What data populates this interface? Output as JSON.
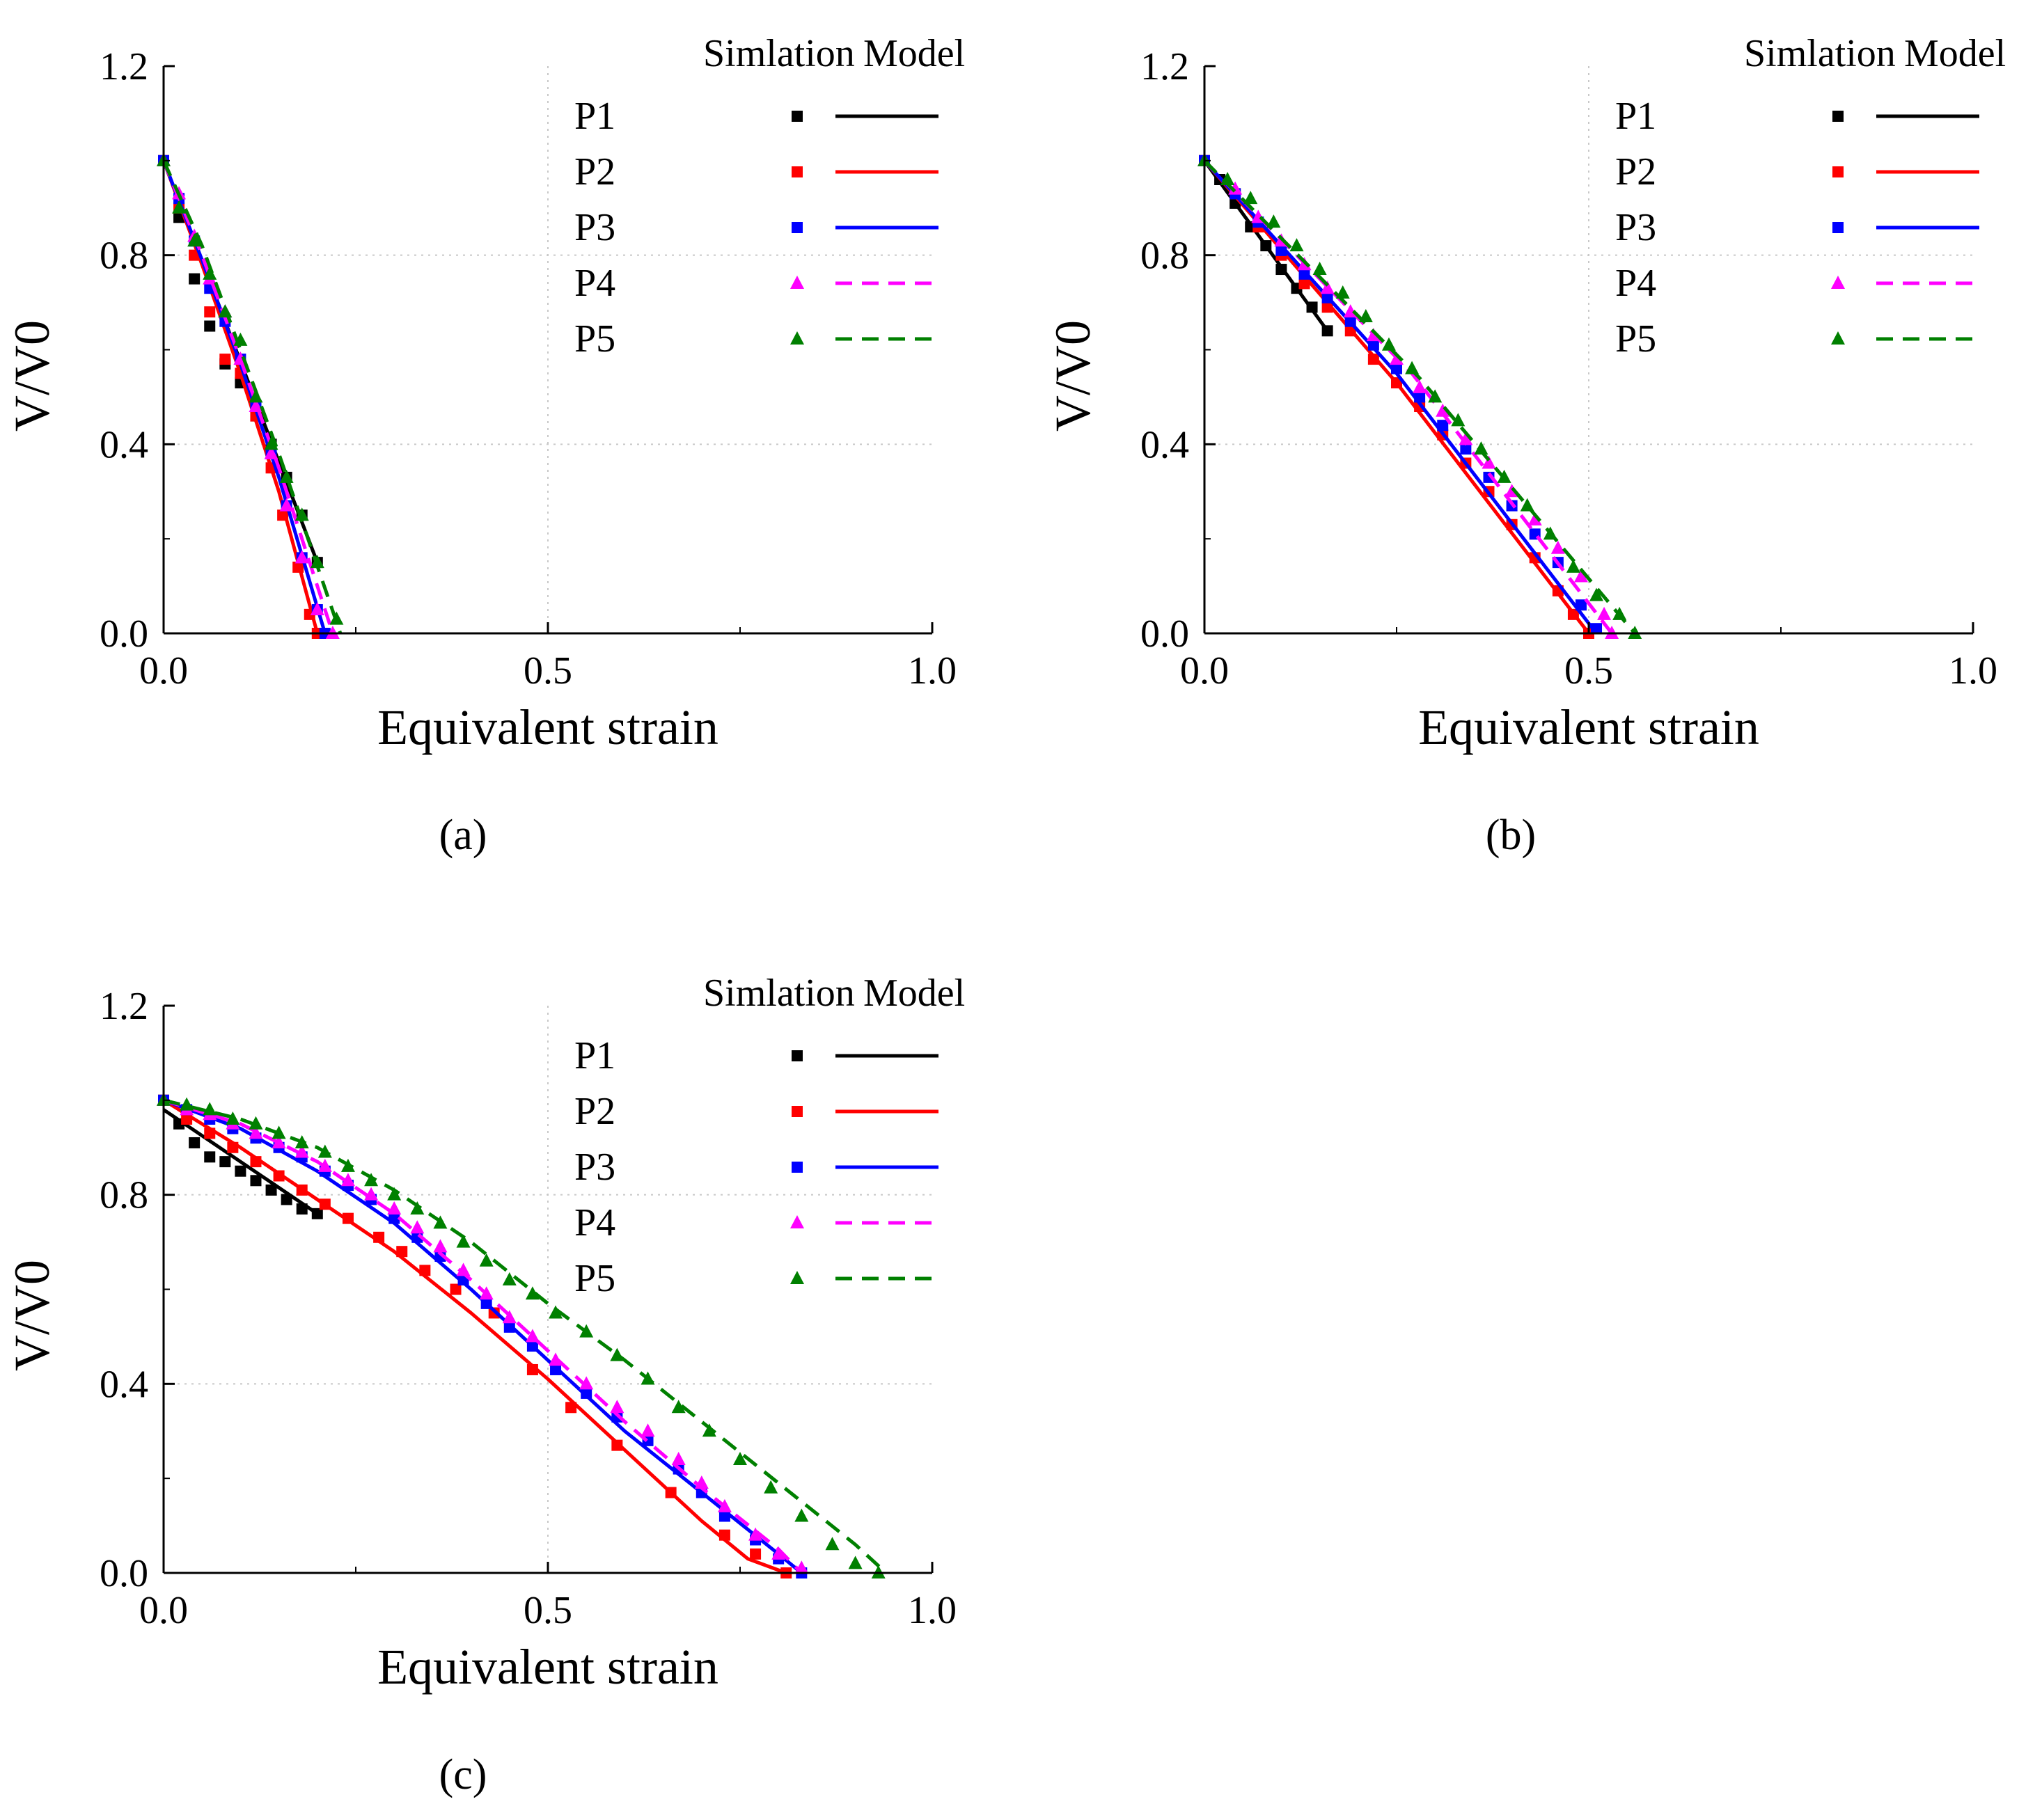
{
  "colors": {
    "P1": "#000000",
    "P2": "#ff0000",
    "P3": "#0000ff",
    "P4": "#ff00ff",
    "P5": "#008000"
  },
  "chart_data": [
    {
      "type": "line",
      "panel_label": "(a)",
      "xlabel": "Equivalent strain",
      "ylabel": "V/V0",
      "xlim": [
        0.0,
        1.0
      ],
      "ylim": [
        0.0,
        1.2
      ],
      "xticks": [
        "0.0",
        "0.5",
        "1.0"
      ],
      "yticks": [
        "0.0",
        "0.4",
        "0.8",
        "1.2"
      ],
      "grid": "dotted",
      "legend": {
        "placement": "top-right",
        "sim_header": "Simlation",
        "model_header": "Model",
        "entries": [
          "P1",
          "P2",
          "P3",
          "P4",
          "P5"
        ]
      },
      "series": [
        {
          "name": "P1",
          "marker": "square",
          "line": "solid",
          "sim_x": [
            0.0,
            0.02,
            0.04,
            0.06,
            0.08,
            0.1,
            0.12,
            0.14,
            0.16,
            0.18,
            0.2
          ],
          "sim_y": [
            1.0,
            0.88,
            0.75,
            0.65,
            0.57,
            0.53,
            0.46,
            0.4,
            0.33,
            0.25,
            0.15
          ],
          "model_x": [
            0.0,
            0.2
          ],
          "model_y": [
            1.0,
            0.15
          ]
        },
        {
          "name": "P2",
          "marker": "square",
          "line": "solid",
          "sim_x": [
            0.0,
            0.02,
            0.04,
            0.06,
            0.08,
            0.1,
            0.12,
            0.14,
            0.155,
            0.175,
            0.19,
            0.2
          ],
          "sim_y": [
            1.0,
            0.9,
            0.8,
            0.68,
            0.58,
            0.55,
            0.46,
            0.35,
            0.25,
            0.14,
            0.04,
            0.0
          ],
          "model_x": [
            0.0,
            0.05,
            0.1,
            0.15,
            0.2
          ],
          "model_y": [
            1.0,
            0.78,
            0.55,
            0.3,
            0.0
          ]
        },
        {
          "name": "P3",
          "marker": "square",
          "line": "solid",
          "sim_x": [
            0.0,
            0.02,
            0.04,
            0.06,
            0.08,
            0.1,
            0.12,
            0.14,
            0.16,
            0.18,
            0.2,
            0.21
          ],
          "sim_y": [
            1.0,
            0.92,
            0.83,
            0.73,
            0.66,
            0.58,
            0.48,
            0.38,
            0.27,
            0.16,
            0.05,
            0.0
          ],
          "model_x": [
            0.0,
            0.05,
            0.1,
            0.15,
            0.21
          ],
          "model_y": [
            1.0,
            0.79,
            0.57,
            0.33,
            0.0
          ]
        },
        {
          "name": "P4",
          "marker": "triangle",
          "line": "dashed",
          "sim_x": [
            0.0,
            0.02,
            0.04,
            0.06,
            0.08,
            0.1,
            0.12,
            0.14,
            0.16,
            0.18,
            0.2,
            0.22
          ],
          "sim_y": [
            1.0,
            0.93,
            0.84,
            0.75,
            0.68,
            0.58,
            0.48,
            0.38,
            0.27,
            0.16,
            0.05,
            0.0
          ],
          "model_x": [
            0.0,
            0.05,
            0.1,
            0.15,
            0.22
          ],
          "model_y": [
            1.0,
            0.8,
            0.58,
            0.35,
            0.0
          ]
        },
        {
          "name": "P5",
          "marker": "triangle",
          "line": "dashed",
          "sim_x": [
            0.0,
            0.02,
            0.04,
            0.06,
            0.08,
            0.1,
            0.12,
            0.14,
            0.16,
            0.18,
            0.2,
            0.225
          ],
          "sim_y": [
            1.0,
            0.9,
            0.83,
            0.76,
            0.68,
            0.62,
            0.5,
            0.4,
            0.33,
            0.25,
            0.15,
            0.03
          ],
          "model_x": [
            0.0,
            0.05,
            0.1,
            0.15,
            0.23
          ],
          "model_y": [
            1.0,
            0.82,
            0.6,
            0.38,
            0.0
          ]
        }
      ]
    },
    {
      "type": "line",
      "panel_label": "(b)",
      "xlabel": "Equivalent strain",
      "ylabel": "V/V0",
      "xlim": [
        0.0,
        1.0
      ],
      "ylim": [
        0.0,
        1.2
      ],
      "xticks": [
        "0.0",
        "0.5",
        "1.0"
      ],
      "yticks": [
        "0.0",
        "0.4",
        "0.8",
        "1.2"
      ],
      "grid": "dotted",
      "legend": {
        "placement": "top-right",
        "sim_header": "Simlation",
        "model_header": "Model",
        "entries": [
          "P1",
          "P2",
          "P3",
          "P4",
          "P5"
        ]
      },
      "series": [
        {
          "name": "P1",
          "marker": "square",
          "line": "solid",
          "sim_x": [
            0.0,
            0.02,
            0.04,
            0.06,
            0.08,
            0.1,
            0.12,
            0.14,
            0.16
          ],
          "sim_y": [
            1.0,
            0.96,
            0.91,
            0.86,
            0.82,
            0.77,
            0.73,
            0.69,
            0.64
          ],
          "model_x": [
            0.0,
            0.16
          ],
          "model_y": [
            1.0,
            0.64
          ]
        },
        {
          "name": "P2",
          "marker": "square",
          "line": "solid",
          "sim_x": [
            0.0,
            0.04,
            0.07,
            0.1,
            0.13,
            0.16,
            0.19,
            0.22,
            0.25,
            0.28,
            0.31,
            0.34,
            0.37,
            0.4,
            0.43,
            0.46,
            0.48,
            0.5
          ],
          "sim_y": [
            1.0,
            0.93,
            0.86,
            0.8,
            0.74,
            0.69,
            0.64,
            0.58,
            0.53,
            0.48,
            0.42,
            0.36,
            0.3,
            0.23,
            0.16,
            0.09,
            0.04,
            0.0
          ],
          "model_x": [
            0.0,
            0.25,
            0.5
          ],
          "model_y": [
            1.0,
            0.53,
            0.0
          ]
        },
        {
          "name": "P3",
          "marker": "square",
          "line": "solid",
          "sim_x": [
            0.0,
            0.04,
            0.07,
            0.1,
            0.13,
            0.16,
            0.19,
            0.22,
            0.25,
            0.28,
            0.31,
            0.34,
            0.37,
            0.4,
            0.43,
            0.46,
            0.49,
            0.51
          ],
          "sim_y": [
            1.0,
            0.93,
            0.87,
            0.81,
            0.76,
            0.71,
            0.66,
            0.61,
            0.56,
            0.5,
            0.44,
            0.39,
            0.33,
            0.27,
            0.21,
            0.15,
            0.06,
            0.01
          ],
          "model_x": [
            0.0,
            0.25,
            0.51
          ],
          "model_y": [
            1.0,
            0.55,
            0.0
          ]
        },
        {
          "name": "P4",
          "marker": "triangle",
          "line": "dashed",
          "sim_x": [
            0.0,
            0.04,
            0.07,
            0.1,
            0.13,
            0.16,
            0.19,
            0.22,
            0.25,
            0.28,
            0.31,
            0.34,
            0.37,
            0.4,
            0.43,
            0.46,
            0.49,
            0.52,
            0.53
          ],
          "sim_y": [
            1.0,
            0.94,
            0.88,
            0.83,
            0.78,
            0.73,
            0.68,
            0.63,
            0.58,
            0.52,
            0.47,
            0.41,
            0.36,
            0.3,
            0.24,
            0.18,
            0.12,
            0.04,
            0.0
          ],
          "model_x": [
            0.0,
            0.27,
            0.53
          ],
          "model_y": [
            1.0,
            0.55,
            0.0
          ]
        },
        {
          "name": "P5",
          "marker": "triangle",
          "line": "dashed",
          "sim_x": [
            0.0,
            0.03,
            0.06,
            0.09,
            0.12,
            0.15,
            0.18,
            0.21,
            0.24,
            0.27,
            0.3,
            0.33,
            0.36,
            0.39,
            0.42,
            0.45,
            0.48,
            0.51,
            0.54,
            0.56
          ],
          "sim_y": [
            1.0,
            0.96,
            0.92,
            0.87,
            0.82,
            0.77,
            0.72,
            0.67,
            0.61,
            0.56,
            0.5,
            0.45,
            0.39,
            0.33,
            0.27,
            0.21,
            0.14,
            0.08,
            0.04,
            0.0
          ],
          "model_x": [
            0.0,
            0.28,
            0.56
          ],
          "model_y": [
            1.0,
            0.54,
            0.0
          ]
        }
      ]
    },
    {
      "type": "line",
      "panel_label": "(c)",
      "xlabel": "Equivalent strain",
      "ylabel": "V/V0",
      "xlim": [
        0.0,
        1.0
      ],
      "ylim": [
        0.0,
        1.2
      ],
      "xticks": [
        "0.0",
        "0.5",
        "1.0"
      ],
      "yticks": [
        "0.0",
        "0.4",
        "0.8",
        "1.2"
      ],
      "grid": "dotted",
      "legend": {
        "placement": "top-right",
        "sim_header": "Simlation",
        "model_header": "Model",
        "entries": [
          "P1",
          "P2",
          "P3",
          "P4",
          "P5"
        ]
      },
      "series": [
        {
          "name": "P1",
          "marker": "square",
          "line": "solid",
          "sim_x": [
            0.0,
            0.02,
            0.04,
            0.06,
            0.08,
            0.1,
            0.12,
            0.14,
            0.16,
            0.18,
            0.2
          ],
          "sim_y": [
            1.0,
            0.95,
            0.91,
            0.88,
            0.87,
            0.85,
            0.83,
            0.81,
            0.79,
            0.77,
            0.76
          ],
          "model_x": [
            0.0,
            0.2
          ],
          "model_y": [
            0.98,
            0.76
          ]
        },
        {
          "name": "P2",
          "marker": "square",
          "line": "solid",
          "sim_x": [
            0.0,
            0.03,
            0.06,
            0.09,
            0.12,
            0.15,
            0.18,
            0.21,
            0.24,
            0.28,
            0.31,
            0.34,
            0.38,
            0.43,
            0.48,
            0.53,
            0.59,
            0.66,
            0.73,
            0.77,
            0.81
          ],
          "sim_y": [
            1.0,
            0.96,
            0.93,
            0.9,
            0.87,
            0.84,
            0.81,
            0.78,
            0.75,
            0.71,
            0.68,
            0.64,
            0.6,
            0.55,
            0.43,
            0.35,
            0.27,
            0.17,
            0.08,
            0.04,
            0.0
          ],
          "model_x": [
            0.0,
            0.1,
            0.2,
            0.3,
            0.4,
            0.5,
            0.6,
            0.7,
            0.76,
            0.81
          ],
          "model_y": [
            1.0,
            0.9,
            0.79,
            0.68,
            0.55,
            0.41,
            0.26,
            0.11,
            0.03,
            0.0
          ]
        },
        {
          "name": "P3",
          "marker": "square",
          "line": "solid",
          "sim_x": [
            0.0,
            0.03,
            0.06,
            0.09,
            0.12,
            0.15,
            0.18,
            0.21,
            0.24,
            0.27,
            0.3,
            0.33,
            0.36,
            0.39,
            0.42,
            0.45,
            0.48,
            0.51,
            0.55,
            0.59,
            0.63,
            0.67,
            0.7,
            0.73,
            0.77,
            0.8,
            0.83
          ],
          "sim_y": [
            1.0,
            0.98,
            0.96,
            0.94,
            0.92,
            0.9,
            0.88,
            0.85,
            0.82,
            0.79,
            0.75,
            0.71,
            0.67,
            0.62,
            0.57,
            0.52,
            0.48,
            0.43,
            0.38,
            0.33,
            0.28,
            0.22,
            0.17,
            0.12,
            0.07,
            0.03,
            0.0
          ],
          "model_x": [
            0.0,
            0.1,
            0.2,
            0.3,
            0.4,
            0.5,
            0.6,
            0.7,
            0.8,
            0.83
          ],
          "model_y": [
            1.0,
            0.94,
            0.85,
            0.74,
            0.6,
            0.45,
            0.3,
            0.17,
            0.04,
            0.0
          ]
        },
        {
          "name": "P4",
          "marker": "triangle",
          "line": "dashed",
          "sim_x": [
            0.0,
            0.03,
            0.06,
            0.09,
            0.12,
            0.15,
            0.18,
            0.21,
            0.24,
            0.27,
            0.3,
            0.33,
            0.36,
            0.39,
            0.42,
            0.45,
            0.48,
            0.51,
            0.55,
            0.59,
            0.63,
            0.67,
            0.7,
            0.73,
            0.77,
            0.8,
            0.83
          ],
          "sim_y": [
            1.0,
            0.98,
            0.97,
            0.95,
            0.93,
            0.91,
            0.89,
            0.86,
            0.83,
            0.8,
            0.77,
            0.73,
            0.69,
            0.64,
            0.59,
            0.54,
            0.5,
            0.45,
            0.4,
            0.35,
            0.3,
            0.24,
            0.19,
            0.14,
            0.08,
            0.04,
            0.01
          ],
          "model_x": [
            0.0,
            0.1,
            0.2,
            0.3,
            0.4,
            0.5,
            0.6,
            0.7,
            0.8,
            0.83
          ],
          "model_y": [
            1.0,
            0.95,
            0.87,
            0.76,
            0.62,
            0.47,
            0.32,
            0.18,
            0.05,
            0.0
          ]
        },
        {
          "name": "P5",
          "marker": "triangle",
          "line": "dashed",
          "sim_x": [
            0.0,
            0.03,
            0.06,
            0.09,
            0.12,
            0.15,
            0.18,
            0.21,
            0.24,
            0.27,
            0.3,
            0.33,
            0.36,
            0.39,
            0.42,
            0.45,
            0.48,
            0.51,
            0.55,
            0.59,
            0.63,
            0.67,
            0.71,
            0.75,
            0.79,
            0.83,
            0.87,
            0.9,
            0.93
          ],
          "sim_y": [
            1.0,
            0.99,
            0.98,
            0.96,
            0.95,
            0.93,
            0.91,
            0.89,
            0.86,
            0.83,
            0.8,
            0.77,
            0.74,
            0.7,
            0.66,
            0.62,
            0.59,
            0.55,
            0.51,
            0.46,
            0.41,
            0.35,
            0.3,
            0.24,
            0.18,
            0.12,
            0.06,
            0.02,
            0.0
          ],
          "model_x": [
            0.0,
            0.1,
            0.2,
            0.3,
            0.4,
            0.5,
            0.6,
            0.7,
            0.8,
            0.9,
            0.94
          ],
          "model_y": [
            1.0,
            0.96,
            0.9,
            0.81,
            0.7,
            0.57,
            0.45,
            0.32,
            0.19,
            0.06,
            0.0
          ]
        }
      ]
    }
  ]
}
